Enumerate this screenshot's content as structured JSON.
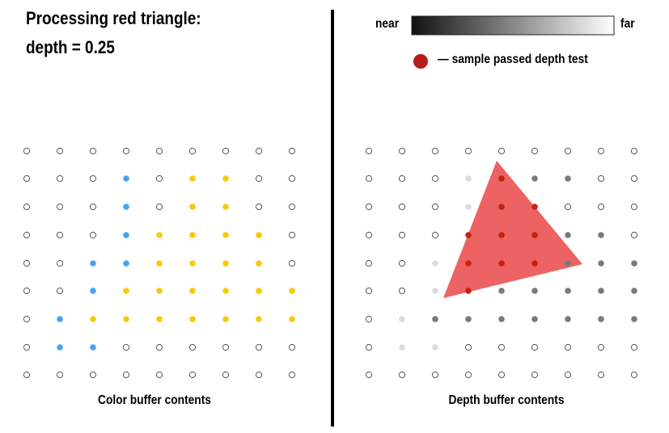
{
  "title_line1": "Processing red triangle:",
  "title_line2": "depth = 0.25",
  "depth_scale": {
    "near_label": "near",
    "far_label": "far"
  },
  "legend": {
    "label": "— sample passed depth test",
    "color": "#b71c1c"
  },
  "colors": {
    "blue": "#42a5f5",
    "yellow": "#fdc80a",
    "empty_stroke": "#555555",
    "triangle": "#ec5a5a",
    "passed": "#c42214",
    "depth_light": "#dcdcdc",
    "depth_medium": "#7a7a7a"
  },
  "color_buffer": {
    "caption": "Color buffer contents",
    "grid": [
      ".........",
      "...B.YY..",
      "...B.YY..",
      "...BYYYY.",
      "..BBYYYY.",
      "..BYYYYYY",
      ".BYYYYYYY",
      ".BB......",
      "........."
    ]
  },
  "depth_buffer": {
    "caption": "Depth buffer contents",
    "grid": [
      ".........",
      "...LPMM..",
      "...LPP...",
      "...PPPMM.",
      "..LPPPMMM",
      "..LPMMMMM",
      ".LMMMMMMM",
      ".LL......",
      "........."
    ]
  }
}
